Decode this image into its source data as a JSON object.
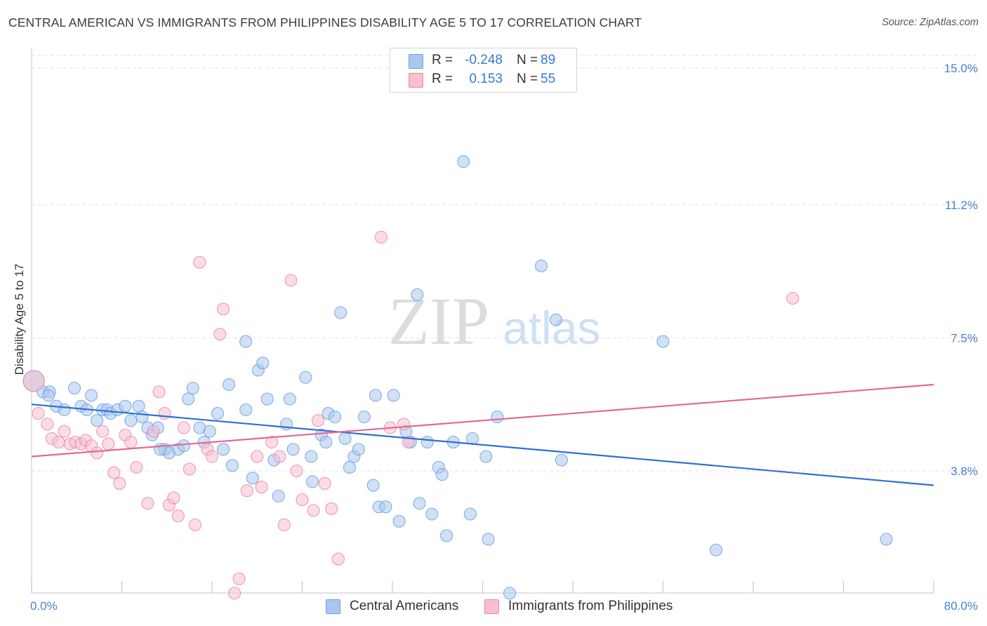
{
  "title": "CENTRAL AMERICAN VS IMMIGRANTS FROM PHILIPPINES DISABILITY AGE 5 TO 17 CORRELATION CHART",
  "source": "Source: ZipAtlas.com",
  "watermark": {
    "zip": "ZIP",
    "atlas": "atlas"
  },
  "stats": [
    {
      "r_label": "R =",
      "r_value": "-0.248",
      "n_label": "N =",
      "n_value": "89",
      "color": "#a9c8ef",
      "border": "#6f9fe0"
    },
    {
      "r_label": "R =",
      "r_value": "0.153",
      "n_label": "N =",
      "n_value": "55",
      "color": "#f7bfd0",
      "border": "#ea8aa8"
    }
  ],
  "legend": [
    {
      "label": "Central Americans",
      "color": "#a9c8ef",
      "border": "#6f9fe0"
    },
    {
      "label": "Immigrants from Philippines",
      "color": "#f7bfd0",
      "border": "#ea8aa8"
    }
  ],
  "chart_data": {
    "type": "scatter",
    "title": "CENTRAL AMERICAN VS IMMIGRANTS FROM PHILIPPINES DISABILITY AGE 5 TO 17 CORRELATION CHART",
    "xlabel": "",
    "ylabel": "Disability Age 5 to 17",
    "xlim": [
      0,
      80
    ],
    "ylim": [
      0,
      15.4
    ],
    "x_tick_labels": [
      {
        "value": 0,
        "label": "0.0%"
      },
      {
        "value": 80,
        "label": "80.0%"
      }
    ],
    "y_ticks": [
      {
        "value": 3.8,
        "label": "3.8%"
      },
      {
        "value": 7.5,
        "label": "7.5%"
      },
      {
        "value": 11.2,
        "label": "11.2%"
      },
      {
        "value": 15.0,
        "label": "15.0%"
      }
    ],
    "grid": true,
    "legend_position": "bottom-center",
    "series": [
      {
        "name": "Central Americans",
        "color": "#6f9fe0",
        "fill": "#a9c8ef",
        "trend": {
          "x": [
            0,
            80
          ],
          "y": [
            5.65,
            3.4
          ]
        },
        "points": [
          [
            0.2,
            6.3
          ],
          [
            1.0,
            6.0
          ],
          [
            1.6,
            6.0
          ],
          [
            2.2,
            5.6
          ],
          [
            2.9,
            5.5
          ],
          [
            3.8,
            6.1
          ],
          [
            4.4,
            5.6
          ],
          [
            4.9,
            5.5
          ],
          [
            5.3,
            5.9
          ],
          [
            5.8,
            5.2
          ],
          [
            6.3,
            5.5
          ],
          [
            6.7,
            5.5
          ],
          [
            7.0,
            5.4
          ],
          [
            7.6,
            5.5
          ],
          [
            8.3,
            5.6
          ],
          [
            8.8,
            5.2
          ],
          [
            9.5,
            5.6
          ],
          [
            9.8,
            5.3
          ],
          [
            10.3,
            5.0
          ],
          [
            10.7,
            4.8
          ],
          [
            11.2,
            5.0
          ],
          [
            11.8,
            4.4
          ],
          [
            12.2,
            4.3
          ],
          [
            13.0,
            4.4
          ],
          [
            13.5,
            4.5
          ],
          [
            13.9,
            5.8
          ],
          [
            14.3,
            6.1
          ],
          [
            14.9,
            5.0
          ],
          [
            15.3,
            4.6
          ],
          [
            15.8,
            4.9
          ],
          [
            16.5,
            5.4
          ],
          [
            17.0,
            4.4
          ],
          [
            17.5,
            6.2
          ],
          [
            17.8,
            3.95
          ],
          [
            19.0,
            5.5
          ],
          [
            19.0,
            7.4
          ],
          [
            19.6,
            3.6
          ],
          [
            20.1,
            6.6
          ],
          [
            20.5,
            6.8
          ],
          [
            20.9,
            5.8
          ],
          [
            21.5,
            4.1
          ],
          [
            21.9,
            3.1
          ],
          [
            22.6,
            5.1
          ],
          [
            22.9,
            5.8
          ],
          [
            23.2,
            4.4
          ],
          [
            24.3,
            6.4
          ],
          [
            24.8,
            4.2
          ],
          [
            24.9,
            3.5
          ],
          [
            25.7,
            4.8
          ],
          [
            26.1,
            4.6
          ],
          [
            26.3,
            5.4
          ],
          [
            26.9,
            5.3
          ],
          [
            27.4,
            8.2
          ],
          [
            27.8,
            4.7
          ],
          [
            28.2,
            3.9
          ],
          [
            28.6,
            4.2
          ],
          [
            29.0,
            4.4
          ],
          [
            29.5,
            5.3
          ],
          [
            30.3,
            3.4
          ],
          [
            30.5,
            5.9
          ],
          [
            30.8,
            2.8
          ],
          [
            31.4,
            2.8
          ],
          [
            32.1,
            5.9
          ],
          [
            32.6,
            2.4
          ],
          [
            33.2,
            4.9
          ],
          [
            33.6,
            4.6
          ],
          [
            34.2,
            8.7
          ],
          [
            34.4,
            2.9
          ],
          [
            35.1,
            4.6
          ],
          [
            35.5,
            2.6
          ],
          [
            36.1,
            3.9
          ],
          [
            36.4,
            3.7
          ],
          [
            36.8,
            2.0
          ],
          [
            37.4,
            4.6
          ],
          [
            38.3,
            12.4
          ],
          [
            38.9,
            2.6
          ],
          [
            39.1,
            4.7
          ],
          [
            40.3,
            4.2
          ],
          [
            40.5,
            1.9
          ],
          [
            41.3,
            5.3
          ],
          [
            42.4,
            0.4
          ],
          [
            45.2,
            9.5
          ],
          [
            46.5,
            8.0
          ],
          [
            47.0,
            4.1
          ],
          [
            56.0,
            7.4
          ],
          [
            60.7,
            1.6
          ],
          [
            75.8,
            1.9
          ],
          [
            1.5,
            5.9
          ],
          [
            11.4,
            4.4
          ]
        ]
      },
      {
        "name": "Immigrants from Philippines",
        "color": "#ea8aa8",
        "fill": "#f7bfd0",
        "trend": {
          "x": [
            0,
            80
          ],
          "y": [
            4.2,
            6.2
          ]
        },
        "points": [
          [
            0.2,
            6.3
          ],
          [
            0.6,
            5.4
          ],
          [
            1.4,
            5.1
          ],
          [
            1.8,
            4.7
          ],
          [
            2.4,
            4.6
          ],
          [
            2.9,
            4.9
          ],
          [
            3.4,
            4.55
          ],
          [
            3.9,
            4.6
          ],
          [
            4.4,
            4.55
          ],
          [
            4.8,
            4.65
          ],
          [
            5.3,
            4.5
          ],
          [
            5.8,
            4.3
          ],
          [
            6.3,
            4.9
          ],
          [
            6.8,
            4.55
          ],
          [
            7.3,
            3.75
          ],
          [
            7.8,
            3.45
          ],
          [
            8.3,
            4.8
          ],
          [
            8.8,
            4.6
          ],
          [
            9.3,
            3.9
          ],
          [
            10.3,
            2.9
          ],
          [
            10.8,
            4.9
          ],
          [
            11.3,
            6.0
          ],
          [
            11.8,
            5.4
          ],
          [
            12.2,
            2.85
          ],
          [
            12.6,
            3.05
          ],
          [
            13.0,
            2.55
          ],
          [
            13.5,
            5.0
          ],
          [
            14.0,
            3.85
          ],
          [
            14.5,
            2.3
          ],
          [
            14.9,
            9.6
          ],
          [
            15.6,
            4.4
          ],
          [
            16.0,
            4.2
          ],
          [
            16.7,
            7.6
          ],
          [
            17.0,
            8.3
          ],
          [
            18.0,
            0.4
          ],
          [
            18.4,
            0.8
          ],
          [
            19.1,
            3.25
          ],
          [
            20.0,
            4.2
          ],
          [
            20.4,
            3.35
          ],
          [
            21.3,
            4.6
          ],
          [
            22.0,
            4.2
          ],
          [
            22.4,
            2.3
          ],
          [
            23.0,
            9.1
          ],
          [
            23.5,
            3.8
          ],
          [
            24.0,
            3.0
          ],
          [
            25.0,
            2.7
          ],
          [
            25.4,
            5.2
          ],
          [
            26.0,
            3.45
          ],
          [
            26.6,
            2.75
          ],
          [
            27.2,
            1.35
          ],
          [
            31.0,
            10.3
          ],
          [
            31.8,
            5.0
          ],
          [
            33.0,
            5.1
          ],
          [
            33.4,
            4.6
          ],
          [
            67.5,
            8.6
          ]
        ]
      }
    ]
  }
}
